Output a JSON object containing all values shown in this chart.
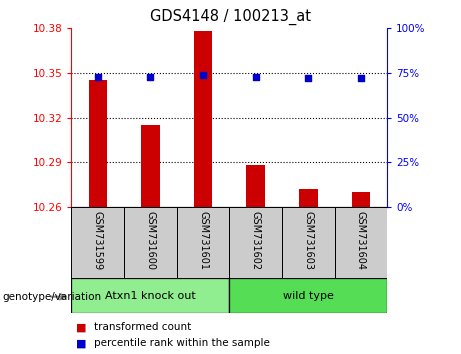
{
  "title": "GDS4148 / 100213_at",
  "samples": [
    "GSM731599",
    "GSM731600",
    "GSM731601",
    "GSM731602",
    "GSM731603",
    "GSM731604"
  ],
  "red_values": [
    10.345,
    10.315,
    10.378,
    10.288,
    10.272,
    10.27
  ],
  "blue_values": [
    73,
    73,
    74,
    73,
    72,
    72
  ],
  "y_min": 10.26,
  "y_max": 10.38,
  "y_ticks_left": [
    10.26,
    10.29,
    10.32,
    10.35,
    10.38
  ],
  "y_ticks_right": [
    0,
    25,
    50,
    75,
    100
  ],
  "bar_color": "#cc0000",
  "dot_color": "#0000cc",
  "groups": [
    {
      "label": "Atxn1 knock out",
      "indices": [
        0,
        1,
        2
      ],
      "color": "#90ee90"
    },
    {
      "label": "wild type",
      "indices": [
        3,
        4,
        5
      ],
      "color": "#55dd55"
    }
  ],
  "legend_red": "transformed count",
  "legend_blue": "percentile rank within the sample",
  "genotype_label": "genotype/variation",
  "background_color": "#ffffff",
  "plot_bg": "#ffffff",
  "tick_area_bg": "#c8c8c8",
  "grid_yticks": [
    10.29,
    10.32,
    10.35
  ],
  "bar_width": 0.35
}
